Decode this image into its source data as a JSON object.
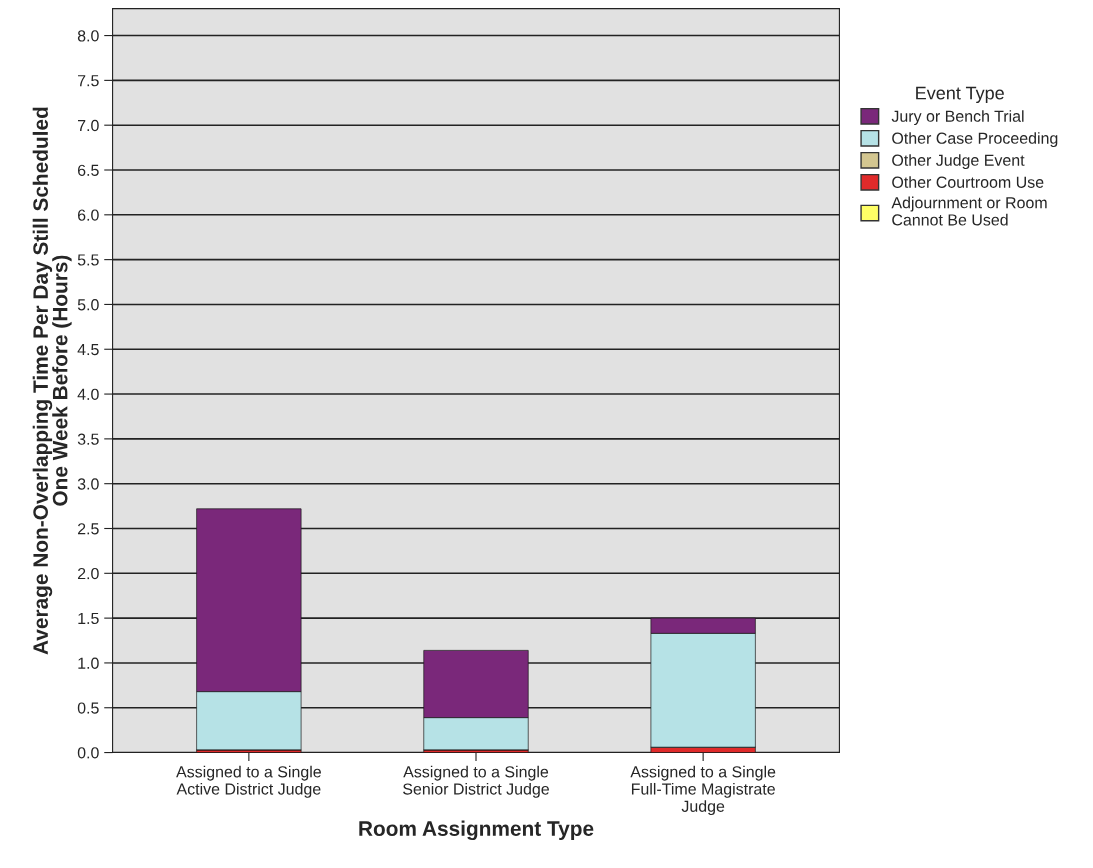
{
  "chart_data": {
    "type": "bar",
    "stacked": true,
    "xlabel": "Room Assignment Type",
    "ylabel": "Average Non-Overlapping Time Per Day Still Scheduled\nOne Week Before (Hours)",
    "legend_title": "Event Type",
    "legend": "right",
    "categories": [
      "Assigned to a Single\nActive District Judge",
      "Assigned to a Single\nSenior District Judge",
      "Assigned to a Single\nFull-Time Magistrate\nJudge"
    ],
    "series": [
      {
        "name": "Adjournment or Room\nCannot Be Used",
        "color": "#ffff66",
        "values": [
          0,
          0,
          0
        ]
      },
      {
        "name": "Other Courtroom Use",
        "color": "#e02a2a",
        "values": [
          0.03,
          0.03,
          0.06
        ]
      },
      {
        "name": "Other Judge Event",
        "color": "#d3c690",
        "values": [
          0,
          0,
          0
        ]
      },
      {
        "name": "Other Case Proceeding",
        "color": "#b6e2e6",
        "values": [
          0.65,
          0.36,
          1.27
        ]
      },
      {
        "name": "Jury or Bench Trial",
        "color": "#7a287a",
        "values": [
          2.04,
          0.75,
          0.17
        ]
      }
    ],
    "ylim": [
      0,
      8.3
    ],
    "yticks": [
      {
        "value": 0,
        "label": "0.0"
      },
      {
        "value": 0.5,
        "label": "0.5"
      },
      {
        "value": 1,
        "label": "1.0"
      },
      {
        "value": 1.5,
        "label": "1.5"
      },
      {
        "value": 2,
        "label": "2.0"
      },
      {
        "value": 2.5,
        "label": "2.5"
      },
      {
        "value": 3,
        "label": "3.0"
      },
      {
        "value": 3.5,
        "label": "3.5"
      },
      {
        "value": 4,
        "label": "4.0"
      },
      {
        "value": 4.5,
        "label": "4.5"
      },
      {
        "value": 5,
        "label": "5.0"
      },
      {
        "value": 5.5,
        "label": "5.5"
      },
      {
        "value": 6,
        "label": "6.0"
      },
      {
        "value": 6.5,
        "label": "6.5"
      },
      {
        "value": 7,
        "label": "7.0"
      },
      {
        "value": 7.5,
        "label": "7.5"
      },
      {
        "value": 8,
        "label": "8.0"
      }
    ],
    "grid": "y"
  }
}
